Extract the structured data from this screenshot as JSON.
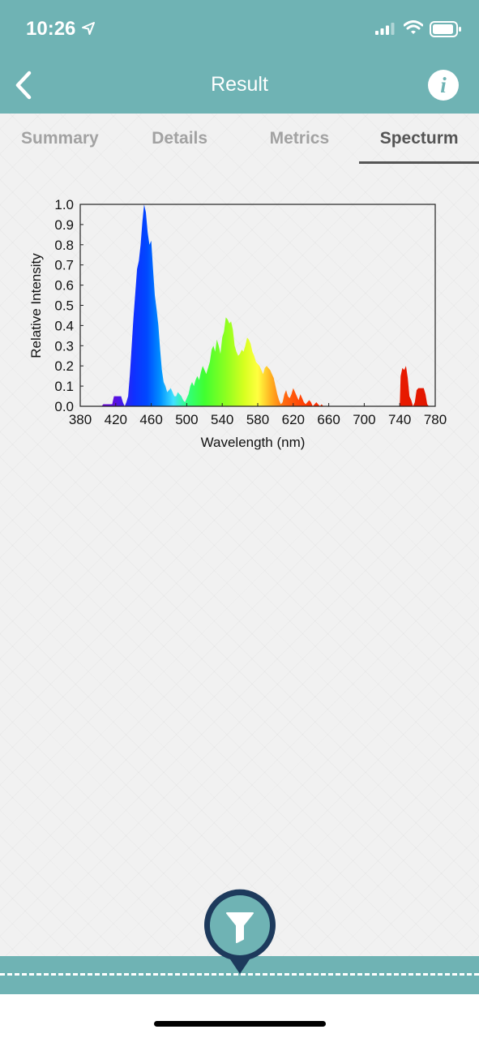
{
  "status": {
    "time": "10:26"
  },
  "nav": {
    "title": "Result",
    "info_label": "i"
  },
  "tabs": [
    {
      "label": "Summary",
      "active": false
    },
    {
      "label": "Details",
      "active": false
    },
    {
      "label": "Metrics",
      "active": false
    },
    {
      "label": "Specturm",
      "active": true
    }
  ],
  "colors": {
    "accent": "#6fb3b4",
    "dark_navy": "#1d3a5c",
    "tab_active": "#555555",
    "tab_inactive": "#a2a2a2"
  },
  "chart_data": {
    "type": "area",
    "title": "",
    "xlabel": "Wavelength (nm)",
    "ylabel": "Relative Intensity",
    "xlim": [
      380,
      780
    ],
    "ylim": [
      0,
      1
    ],
    "xticks": [
      380,
      420,
      460,
      500,
      540,
      580,
      620,
      660,
      700,
      740,
      780
    ],
    "yticks": [
      "0.0",
      "0.1",
      "0.2",
      "0.3",
      "0.4",
      "0.5",
      "0.6",
      "0.7",
      "0.8",
      "0.9",
      "1.0"
    ],
    "grid": false,
    "series": [
      {
        "x": [
          398,
          404,
          406,
          410,
          412,
          416,
          418,
          420,
          422,
          426,
          428,
          430,
          432,
          434,
          436,
          438,
          440,
          442,
          444,
          446,
          448,
          450,
          452,
          454,
          456,
          458,
          460,
          462,
          464,
          466,
          468,
          470,
          472,
          474,
          476,
          478,
          480,
          482,
          484,
          486,
          488,
          490,
          492,
          494,
          496,
          498,
          500,
          502,
          504,
          506,
          508,
          510,
          512,
          514,
          516,
          518,
          520,
          522,
          524,
          526,
          528,
          530,
          532,
          534,
          536,
          538,
          540,
          542,
          544,
          546,
          548,
          550,
          552,
          554,
          556,
          558,
          560,
          562,
          564,
          566,
          568,
          570,
          572,
          574,
          576,
          578,
          580,
          582,
          584,
          586,
          588,
          590,
          592,
          594,
          596,
          598,
          600,
          602,
          604,
          606,
          608,
          610,
          612,
          614,
          616,
          618,
          620,
          622,
          624,
          626,
          628,
          630,
          632,
          634,
          636,
          638,
          640,
          642,
          644,
          646,
          648,
          650,
          652,
          654,
          656,
          740,
          741,
          743,
          745,
          747,
          749,
          751,
          753,
          755,
          757,
          759,
          761,
          763,
          765,
          767,
          769,
          771,
          773,
          775
        ],
        "y": [
          0,
          0,
          0.01,
          0.01,
          0.01,
          0.01,
          0.05,
          0.05,
          0.05,
          0.05,
          0.02,
          0,
          0.02,
          0.05,
          0.16,
          0.3,
          0.44,
          0.56,
          0.68,
          0.72,
          0.8,
          0.91,
          1.0,
          0.96,
          0.86,
          0.8,
          0.82,
          0.68,
          0.55,
          0.48,
          0.4,
          0.28,
          0.18,
          0.12,
          0.1,
          0.07,
          0.08,
          0.09,
          0.07,
          0.05,
          0.05,
          0.07,
          0.06,
          0.05,
          0.03,
          0.02,
          0.04,
          0.06,
          0.1,
          0.12,
          0.1,
          0.13,
          0.15,
          0.13,
          0.17,
          0.2,
          0.18,
          0.16,
          0.19,
          0.22,
          0.28,
          0.3,
          0.27,
          0.33,
          0.3,
          0.26,
          0.34,
          0.37,
          0.44,
          0.43,
          0.41,
          0.42,
          0.38,
          0.3,
          0.27,
          0.25,
          0.26,
          0.28,
          0.27,
          0.3,
          0.34,
          0.33,
          0.31,
          0.27,
          0.25,
          0.22,
          0.21,
          0.2,
          0.18,
          0.16,
          0.19,
          0.2,
          0.19,
          0.18,
          0.16,
          0.14,
          0.1,
          0.06,
          0.03,
          0.01,
          0.02,
          0.06,
          0.08,
          0.05,
          0.04,
          0.06,
          0.09,
          0.07,
          0.05,
          0.03,
          0.06,
          0.04,
          0.02,
          0.01,
          0.02,
          0.03,
          0.02,
          0,
          0.01,
          0.02,
          0.01,
          0,
          0.01,
          0,
          0,
          0,
          0.15,
          0.19,
          0.18,
          0.2,
          0.14,
          0.05,
          0.03,
          0,
          0.02,
          0.08,
          0.09,
          0.09,
          0.09,
          0.09,
          0.06,
          0.01,
          0,
          0
        ]
      }
    ]
  }
}
